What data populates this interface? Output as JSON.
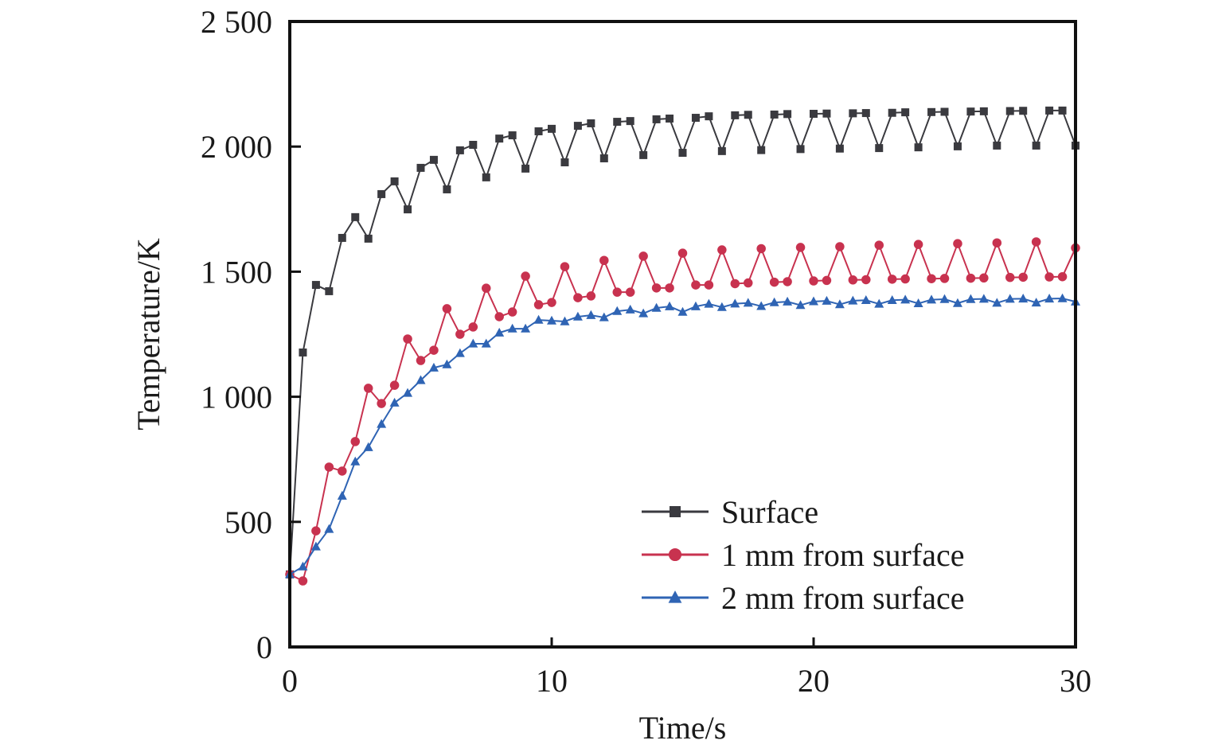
{
  "chart_data": {
    "type": "line",
    "title": "",
    "xlabel": "Time/s",
    "ylabel": "Temperature/K",
    "xlim": [
      0,
      30
    ],
    "ylim": [
      0,
      2500
    ],
    "grid": false,
    "x_ticks": [
      0,
      10,
      20,
      30
    ],
    "x_tick_labels": [
      "0",
      "10",
      "20",
      "30"
    ],
    "y_ticks": [
      0,
      500,
      1000,
      1500,
      2000,
      2500
    ],
    "y_tick_labels": [
      "0",
      "500",
      "1 000",
      "1 500",
      "2 000",
      "2 500"
    ],
    "legend_position": "bottom-right",
    "x": [
      0,
      0.5,
      1,
      1.5,
      2,
      2.5,
      3,
      3.5,
      4,
      4.5,
      5,
      5.5,
      6,
      6.5,
      7,
      7.5,
      8,
      8.5,
      9,
      9.5,
      10,
      10.5,
      11,
      11.5,
      12,
      12.5,
      13,
      13.5,
      14,
      14.5,
      15,
      15.5,
      16,
      16.5,
      17,
      17.5,
      18,
      18.5,
      19,
      19.5,
      20,
      20.5,
      21,
      21.5,
      22,
      22.5,
      23,
      23.5,
      24,
      24.5,
      25,
      25.5,
      26,
      26.5,
      27,
      27.5,
      28,
      28.5,
      29,
      29.5,
      30
    ],
    "series": [
      {
        "name": "Surface",
        "color": "#3a3a3f",
        "marker": "square",
        "values": [
          290,
          1177,
          1447,
          1422,
          1635,
          1718,
          1632,
          1810,
          1861,
          1749,
          1915,
          1947,
          1829,
          1985,
          2007,
          1877,
          2032,
          2045,
          1912,
          2061,
          2071,
          1937,
          2083,
          2093,
          1953,
          2099,
          2102,
          1966,
          2109,
          2112,
          1975,
          2115,
          2121,
          1982,
          2125,
          2127,
          1986,
          2128,
          2130,
          1990,
          2131,
          2132,
          1992,
          2133,
          2134,
          1994,
          2135,
          2137,
          1997,
          2138,
          2139,
          2001,
          2140,
          2141,
          2004,
          2142,
          2143,
          2004,
          2144,
          2144,
          2004
        ]
      },
      {
        "name": "1 mm from surface",
        "color": "#c8324f",
        "marker": "circle",
        "values": [
          290,
          264,
          464,
          719,
          703,
          821,
          1034,
          973,
          1046,
          1231,
          1145,
          1186,
          1352,
          1250,
          1279,
          1434,
          1320,
          1339,
          1482,
          1368,
          1377,
          1520,
          1396,
          1403,
          1545,
          1418,
          1418,
          1562,
          1435,
          1435,
          1574,
          1447,
          1447,
          1587,
          1452,
          1455,
          1592,
          1458,
          1460,
          1597,
          1463,
          1465,
          1600,
          1467,
          1468,
          1606,
          1470,
          1471,
          1609,
          1472,
          1473,
          1612,
          1474,
          1475,
          1615,
          1477,
          1478,
          1619,
          1479,
          1480,
          1595
        ]
      },
      {
        "name": "2 mm from surface",
        "color": "#2f64b4",
        "marker": "triangle",
        "values": [
          290,
          321,
          401,
          471,
          604,
          741,
          798,
          891,
          976,
          1015,
          1066,
          1116,
          1129,
          1174,
          1212,
          1212,
          1256,
          1272,
          1272,
          1307,
          1304,
          1301,
          1320,
          1326,
          1317,
          1342,
          1348,
          1333,
          1355,
          1361,
          1339,
          1361,
          1371,
          1358,
          1372,
          1375,
          1362,
          1377,
          1380,
          1366,
          1381,
          1383,
          1369,
          1384,
          1386,
          1371,
          1386,
          1388,
          1373,
          1388,
          1390,
          1374,
          1390,
          1391,
          1375,
          1391,
          1392,
          1376,
          1392,
          1393,
          1380
        ]
      }
    ]
  }
}
